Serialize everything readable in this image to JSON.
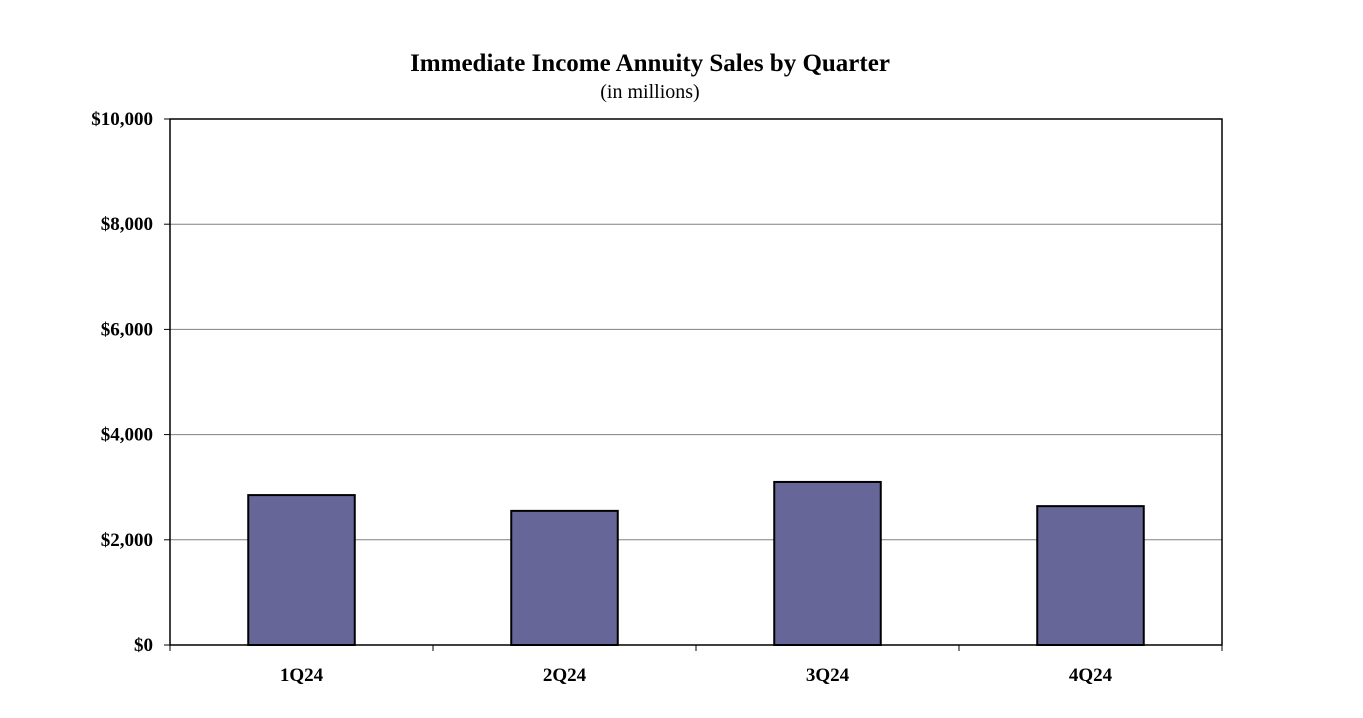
{
  "chart_data": {
    "type": "bar",
    "title": "Immediate Income Annuity Sales by Quarter",
    "subtitle": "(in millions)",
    "xlabel": "",
    "ylabel": "",
    "categories": [
      "1Q24",
      "2Q24",
      "3Q24",
      "4Q24"
    ],
    "values": [
      2850,
      2550,
      3100,
      2640
    ],
    "ylim": [
      0,
      10000
    ],
    "yticks": [
      0,
      2000,
      4000,
      6000,
      8000,
      10000
    ],
    "ytick_labels": [
      "$0",
      "$2,000",
      "$4,000",
      "$6,000",
      "$8,000",
      "$10,000"
    ],
    "grid": true,
    "legend": "none",
    "colors": {
      "bar_fill": "#676699",
      "bar_stroke": "#000000",
      "grid": "#808080",
      "axis": "#000000"
    }
  }
}
